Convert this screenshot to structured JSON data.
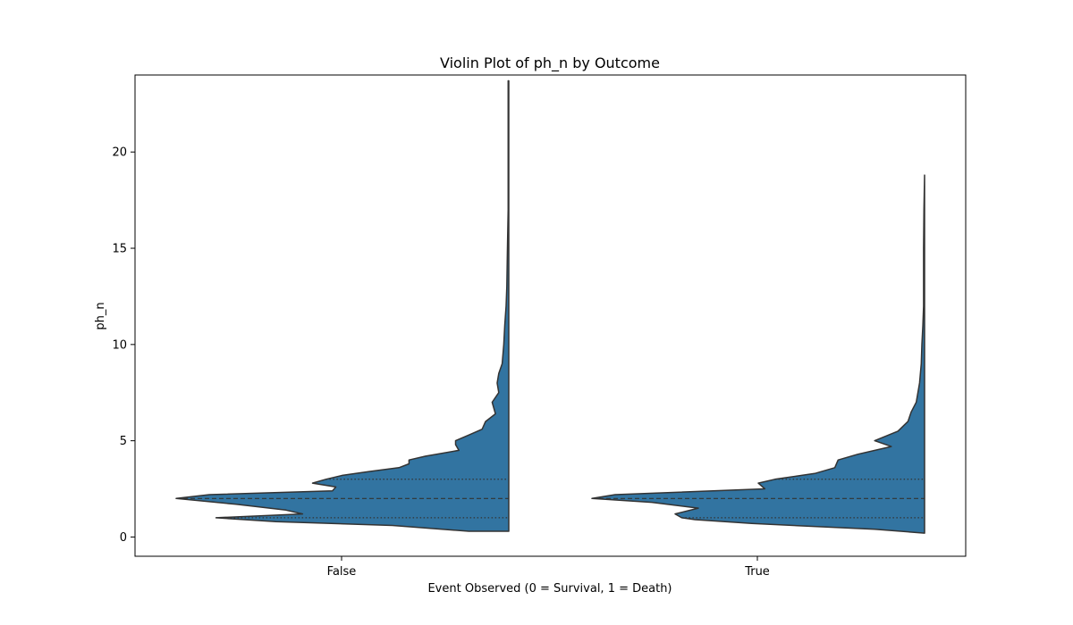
{
  "chart_data": {
    "type": "violin",
    "title": "Violin Plot of ph_n by Outcome",
    "xlabel": "Event Observed (0 = Survival, 1 = Death)",
    "ylabel": "ph_n",
    "categories": [
      "False",
      "True"
    ],
    "ylim": [
      -1,
      24
    ],
    "yticks": [
      0,
      5,
      10,
      15,
      20
    ],
    "grid": false,
    "fill_color": "#3274a1",
    "edge_color": "#333333",
    "orientation": "left-half violins",
    "violins": [
      {
        "category": "False",
        "y_range": [
          0.3,
          23.7
        ],
        "quartiles": {
          "q1": 1.0,
          "median": 2.0,
          "q3": 3.0
        },
        "density_profile": [
          [
            0.3,
            0.12
          ],
          [
            0.6,
            0.35
          ],
          [
            0.8,
            0.7
          ],
          [
            1.0,
            0.88
          ],
          [
            1.2,
            0.62
          ],
          [
            1.4,
            0.67
          ],
          [
            1.7,
            0.82
          ],
          [
            2.0,
            1.0
          ],
          [
            2.2,
            0.9
          ],
          [
            2.4,
            0.53
          ],
          [
            2.6,
            0.52
          ],
          [
            2.8,
            0.59
          ],
          [
            3.0,
            0.55
          ],
          [
            3.2,
            0.5
          ],
          [
            3.4,
            0.42
          ],
          [
            3.6,
            0.33
          ],
          [
            3.8,
            0.3
          ],
          [
            4.0,
            0.3
          ],
          [
            4.2,
            0.25
          ],
          [
            4.5,
            0.15
          ],
          [
            4.8,
            0.16
          ],
          [
            5.0,
            0.16
          ],
          [
            5.3,
            0.12
          ],
          [
            5.6,
            0.08
          ],
          [
            6.0,
            0.07
          ],
          [
            6.4,
            0.04
          ],
          [
            7.0,
            0.05
          ],
          [
            7.5,
            0.03
          ],
          [
            8.0,
            0.035
          ],
          [
            8.5,
            0.03
          ],
          [
            9.0,
            0.02
          ],
          [
            10.0,
            0.015
          ],
          [
            11.0,
            0.012
          ],
          [
            12.0,
            0.008
          ],
          [
            13.0,
            0.006
          ],
          [
            15.0,
            0.004
          ],
          [
            17.0,
            0.002
          ],
          [
            20.0,
            0.002
          ],
          [
            23.7,
            0.002
          ]
        ]
      },
      {
        "category": "True",
        "y_range": [
          0.2,
          18.8
        ],
        "quartiles": {
          "q1": 1.0,
          "median": 2.0,
          "q3": 3.0
        },
        "density_profile": [
          [
            0.2,
            0.0
          ],
          [
            0.4,
            0.15
          ],
          [
            0.7,
            0.52
          ],
          [
            0.9,
            0.69
          ],
          [
            1.0,
            0.73
          ],
          [
            1.2,
            0.75
          ],
          [
            1.5,
            0.68
          ],
          [
            1.8,
            0.82
          ],
          [
            2.0,
            1.0
          ],
          [
            2.2,
            0.93
          ],
          [
            2.5,
            0.48
          ],
          [
            2.8,
            0.5
          ],
          [
            3.0,
            0.45
          ],
          [
            3.3,
            0.33
          ],
          [
            3.6,
            0.27
          ],
          [
            4.0,
            0.26
          ],
          [
            4.3,
            0.2
          ],
          [
            4.7,
            0.1
          ],
          [
            5.0,
            0.15
          ],
          [
            5.5,
            0.08
          ],
          [
            6.0,
            0.05
          ],
          [
            6.5,
            0.04
          ],
          [
            7.0,
            0.025
          ],
          [
            8.0,
            0.015
          ],
          [
            9.0,
            0.01
          ],
          [
            10.0,
            0.008
          ],
          [
            11.0,
            0.005
          ],
          [
            12.0,
            0.003
          ],
          [
            13.0,
            0.003
          ],
          [
            15.0,
            0.003
          ],
          [
            17.0,
            0.002
          ],
          [
            18.8,
            0.0
          ]
        ]
      }
    ]
  }
}
